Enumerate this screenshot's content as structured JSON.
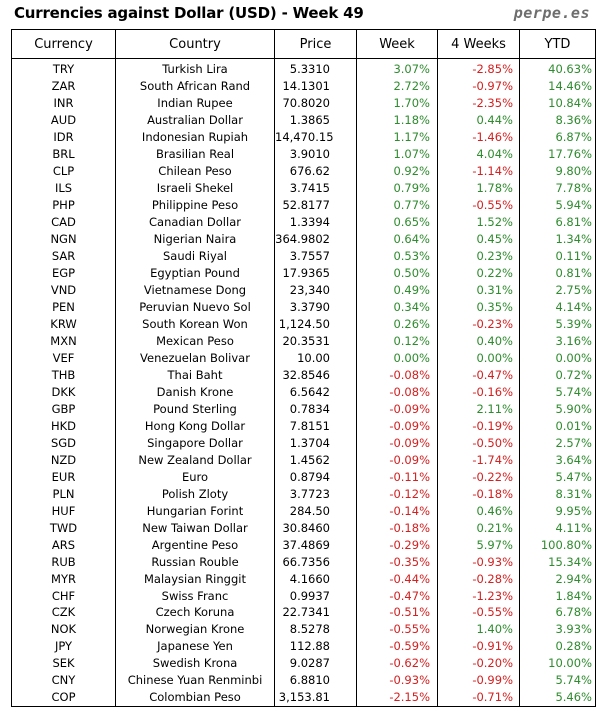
{
  "header": {
    "title": "Currencies against Dollar (USD) - Week 49",
    "brand": "perpe.es"
  },
  "table": {
    "columns": [
      "Currency",
      "Country",
      "Price",
      "Week",
      "4 Weeks",
      "YTD"
    ],
    "rows": [
      [
        "TRY",
        "Turkish Lira",
        "5.3310",
        "3.07%",
        "-2.85%",
        "40.63%"
      ],
      [
        "ZAR",
        "South African Rand",
        "14.1301",
        "2.72%",
        "-0.97%",
        "14.46%"
      ],
      [
        "INR",
        "Indian Rupee",
        "70.8020",
        "1.70%",
        "-2.35%",
        "10.84%"
      ],
      [
        "AUD",
        "Australian Dollar",
        "1.3865",
        "1.18%",
        "0.44%",
        "8.36%"
      ],
      [
        "IDR",
        "Indonesian Rupiah",
        "14,470.15",
        "1.17%",
        "-1.46%",
        "6.87%"
      ],
      [
        "BRL",
        "Brasilian Real",
        "3.9010",
        "1.07%",
        "4.04%",
        "17.76%"
      ],
      [
        "CLP",
        "Chilean Peso",
        "676.62",
        "0.92%",
        "-1.14%",
        "9.80%"
      ],
      [
        "ILS",
        "Israeli Shekel",
        "3.7415",
        "0.79%",
        "1.78%",
        "7.78%"
      ],
      [
        "PHP",
        "Philippine Peso",
        "52.8177",
        "0.77%",
        "-0.55%",
        "5.94%"
      ],
      [
        "CAD",
        "Canadian Dollar",
        "1.3394",
        "0.65%",
        "1.52%",
        "6.81%"
      ],
      [
        "NGN",
        "Nigerian Naira",
        "364.9802",
        "0.64%",
        "0.45%",
        "1.34%"
      ],
      [
        "SAR",
        "Saudi Riyal",
        "3.7557",
        "0.53%",
        "0.23%",
        "0.11%"
      ],
      [
        "EGP",
        "Egyptian Pound",
        "17.9365",
        "0.50%",
        "0.22%",
        "0.81%"
      ],
      [
        "VND",
        "Vietnamese Dong",
        "23,340",
        "0.49%",
        "0.31%",
        "2.75%"
      ],
      [
        "PEN",
        "Peruvian Nuevo Sol",
        "3.3790",
        "0.34%",
        "0.35%",
        "4.14%"
      ],
      [
        "KRW",
        "South Korean Won",
        "1,124.50",
        "0.26%",
        "-0.23%",
        "5.39%"
      ],
      [
        "MXN",
        "Mexican Peso",
        "20.3531",
        "0.12%",
        "0.40%",
        "3.16%"
      ],
      [
        "VEF",
        "Venezuelan Bolivar",
        "10.00",
        "0.00%",
        "0.00%",
        "0.00%"
      ],
      [
        "THB",
        "Thai Baht",
        "32.8546",
        "-0.08%",
        "-0.47%",
        "0.72%"
      ],
      [
        "DKK",
        "Danish Krone",
        "6.5642",
        "-0.08%",
        "-0.16%",
        "5.74%"
      ],
      [
        "GBP",
        "Pound Sterling",
        "0.7834",
        "-0.09%",
        "2.11%",
        "5.90%"
      ],
      [
        "HKD",
        "Hong Kong Dollar",
        "7.8151",
        "-0.09%",
        "-0.19%",
        "0.01%"
      ],
      [
        "SGD",
        "Singapore Dollar",
        "1.3704",
        "-0.09%",
        "-0.50%",
        "2.57%"
      ],
      [
        "NZD",
        "New Zealand Dollar",
        "1.4562",
        "-0.09%",
        "-1.74%",
        "3.64%"
      ],
      [
        "EUR",
        "Euro",
        "0.8794",
        "-0.11%",
        "-0.22%",
        "5.47%"
      ],
      [
        "PLN",
        "Polish Zloty",
        "3.7723",
        "-0.12%",
        "-0.18%",
        "8.31%"
      ],
      [
        "HUF",
        "Hungarian Forint",
        "284.50",
        "-0.14%",
        "0.46%",
        "9.95%"
      ],
      [
        "TWD",
        "New Taiwan Dollar",
        "30.8460",
        "-0.18%",
        "0.21%",
        "4.11%"
      ],
      [
        "ARS",
        "Argentine Peso",
        "37.4869",
        "-0.29%",
        "5.97%",
        "100.80%"
      ],
      [
        "RUB",
        "Russian Rouble",
        "66.7356",
        "-0.35%",
        "-0.93%",
        "15.34%"
      ],
      [
        "MYR",
        "Malaysian Ringgit",
        "4.1660",
        "-0.44%",
        "-0.28%",
        "2.94%"
      ],
      [
        "CHF",
        "Swiss Franc",
        "0.9937",
        "-0.47%",
        "-1.23%",
        "1.84%"
      ],
      [
        "CZK",
        "Czech Koruna",
        "22.7341",
        "-0.51%",
        "-0.55%",
        "6.78%"
      ],
      [
        "NOK",
        "Norwegian Krone",
        "8.5278",
        "-0.55%",
        "1.40%",
        "3.93%"
      ],
      [
        "JPY",
        "Japanese Yen",
        "112.88",
        "-0.59%",
        "-0.91%",
        "0.28%"
      ],
      [
        "SEK",
        "Swedish Krona",
        "9.0287",
        "-0.62%",
        "-0.20%",
        "10.00%"
      ],
      [
        "CNY",
        "Chinese Yuan Renminbi",
        "6.8810",
        "-0.93%",
        "-0.99%",
        "5.74%"
      ],
      [
        "COP",
        "Colombian Peso",
        "3,153.81",
        "-2.15%",
        "-0.71%",
        "5.46%"
      ]
    ]
  },
  "colors": {
    "positive": "#2e8b2e",
    "negative": "#d42020",
    "text": "#000000",
    "brand": "#6e6e6e"
  }
}
